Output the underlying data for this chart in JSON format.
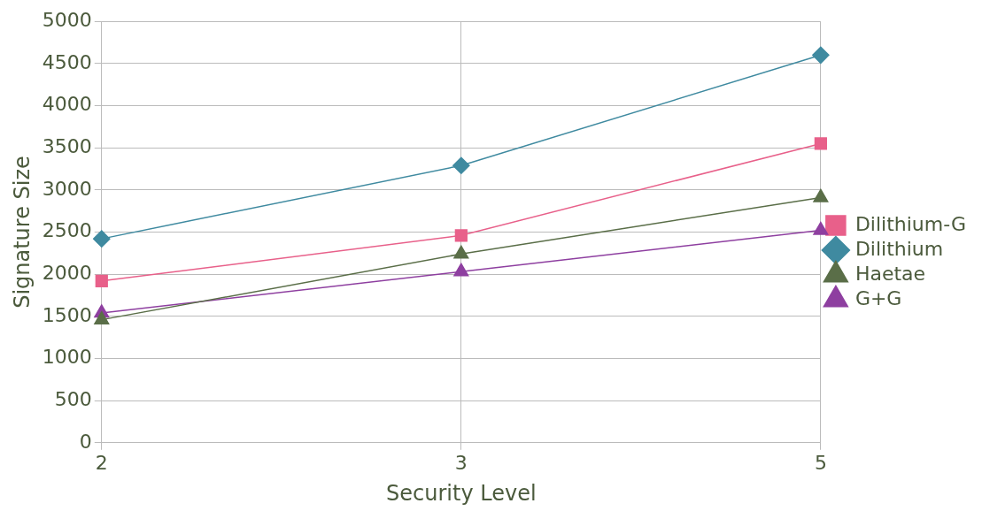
{
  "chart_data": {
    "type": "line",
    "xlabel": "Security Level",
    "ylabel": "Signature Size",
    "categories": [
      "2",
      "3",
      "5"
    ],
    "ylim": [
      0,
      5000
    ],
    "yticks": [
      0,
      500,
      1000,
      1500,
      2000,
      2500,
      3000,
      3500,
      4000,
      4500,
      5000
    ],
    "grid": true,
    "legend": "right",
    "series": [
      {
        "name": "Dilithium-G",
        "color": "#e8608a",
        "marker": "square",
        "values": [
          1920,
          2460,
          3550
        ]
      },
      {
        "name": "Dilithium",
        "color": "#3f8aa0",
        "marker": "diamond",
        "values": [
          2420,
          3290,
          4600
        ]
      },
      {
        "name": "Haetae",
        "color": "#5a6e48",
        "marker": "triangle",
        "values": [
          1460,
          2240,
          2910
        ]
      },
      {
        "name": "G+G",
        "color": "#8e3fa0",
        "marker": "triangle",
        "values": [
          1540,
          2030,
          2520
        ]
      }
    ]
  }
}
